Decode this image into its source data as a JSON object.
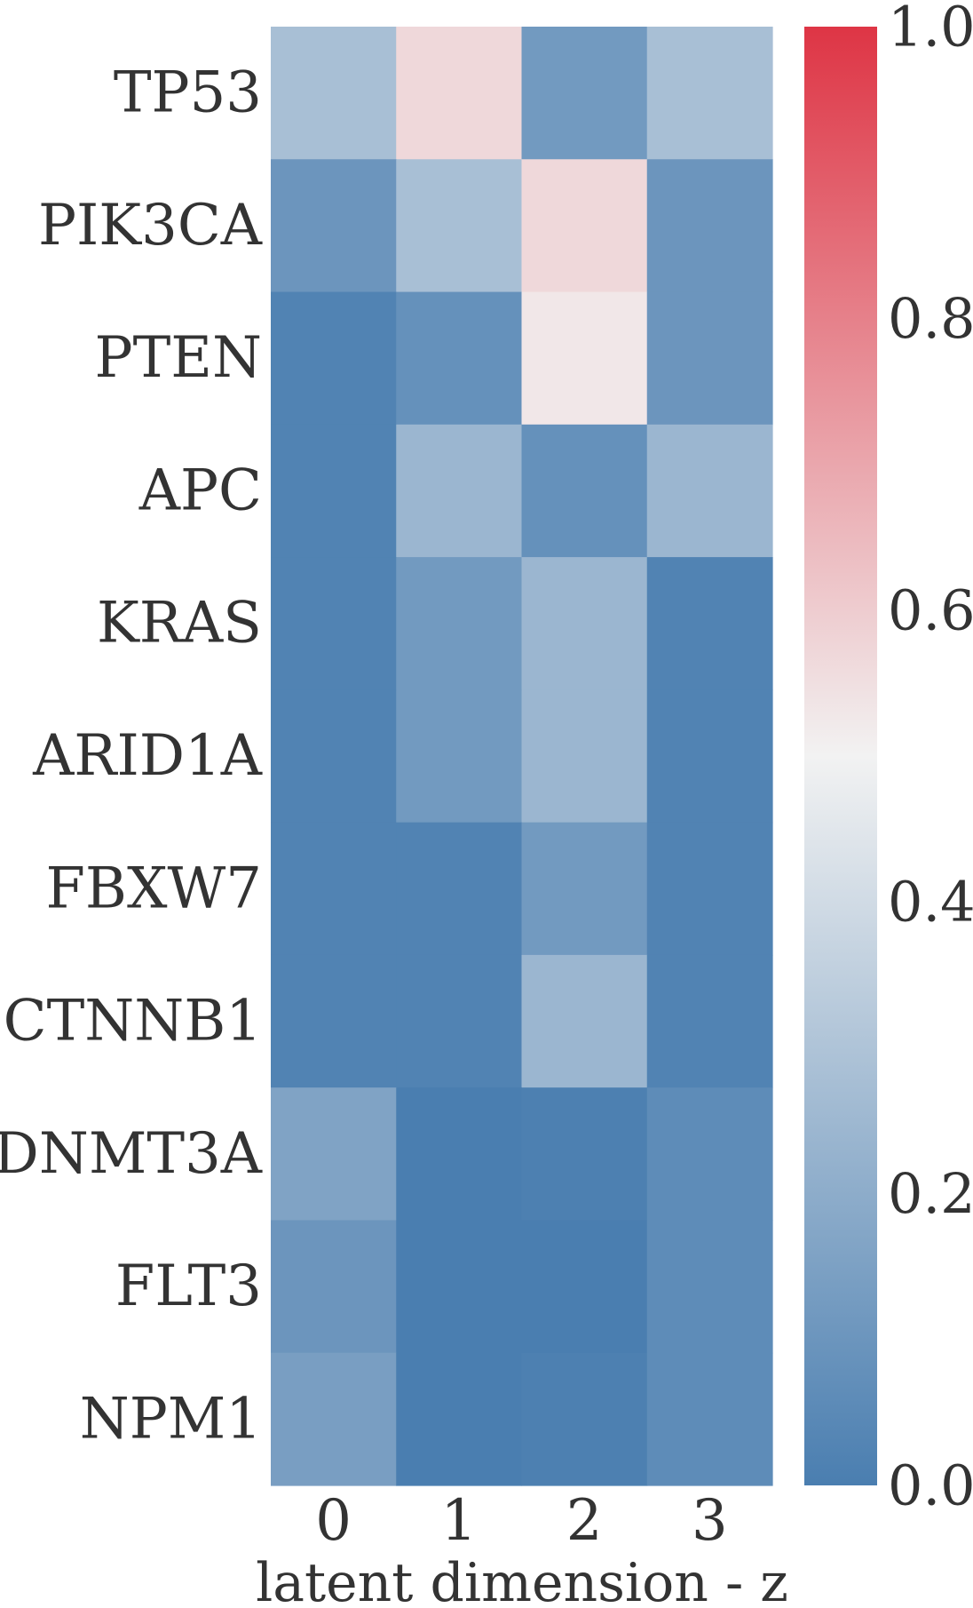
{
  "chart_data": {
    "type": "heatmap",
    "title": "",
    "xlabel": "latent dimension - z",
    "ylabel": "",
    "x_categories": [
      "0",
      "1",
      "2",
      "3"
    ],
    "y_categories": [
      "TP53",
      "PIK3CA",
      "PTEN",
      "APC",
      "KRAS",
      "ARID1A",
      "FBXW7",
      "CTNNB1",
      "DNMT3A",
      "FLT3",
      "NPM1"
    ],
    "values": [
      [
        0.28,
        0.57,
        0.12,
        0.28
      ],
      [
        0.1,
        0.28,
        0.57,
        0.1
      ],
      [
        0.02,
        0.08,
        0.53,
        0.1
      ],
      [
        0.02,
        0.24,
        0.08,
        0.24
      ],
      [
        0.02,
        0.12,
        0.24,
        0.02
      ],
      [
        0.02,
        0.12,
        0.24,
        0.02
      ],
      [
        0.02,
        0.02,
        0.12,
        0.02
      ],
      [
        0.02,
        0.02,
        0.24,
        0.02
      ],
      [
        0.16,
        0.0,
        0.01,
        0.06
      ],
      [
        0.1,
        0.0,
        0.0,
        0.06
      ],
      [
        0.14,
        0.0,
        0.01,
        0.06
      ]
    ],
    "vmin": 0.0,
    "vmax": 1.0,
    "colormap": {
      "low": "#4a7eb0",
      "mid": "#f2f2f2",
      "high": "#de3545"
    },
    "colorbar": {
      "ticks": [
        "0.0",
        "0.2",
        "0.4",
        "0.6",
        "0.8",
        "1.0"
      ],
      "placement": "right"
    },
    "grid": false,
    "legend": "none"
  }
}
